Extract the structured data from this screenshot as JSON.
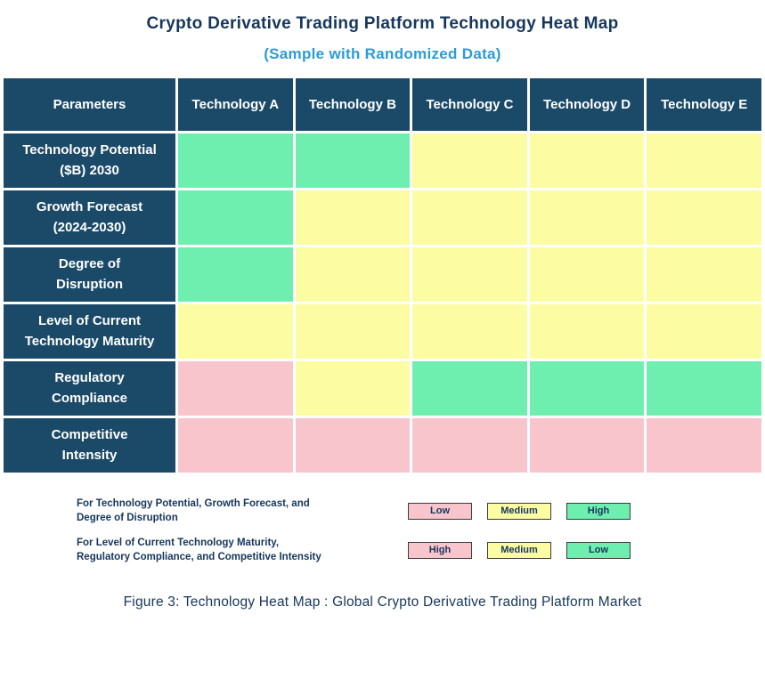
{
  "title": "Crypto Derivative Trading Platform Technology Heat Map",
  "subtitle": "(Sample with Randomized Data)",
  "caption": "Figure 3: Technology Heat Map : Global Crypto Derivative Trading Platform Market",
  "chart_data": {
    "type": "heatmap",
    "columns": [
      "Parameters",
      "Technology A",
      "Technology B",
      "Technology C",
      "Technology D",
      "Technology E"
    ],
    "rows": [
      {
        "label": "Technology Potential\n($B) 2030",
        "colors": [
          "green",
          "green",
          "yellow",
          "yellow",
          "yellow"
        ],
        "values": [
          "High",
          "High",
          "Medium",
          "Medium",
          "Medium"
        ]
      },
      {
        "label": "Growth Forecast\n(2024-2030)",
        "colors": [
          "green",
          "yellow",
          "yellow",
          "yellow",
          "yellow"
        ],
        "values": [
          "High",
          "Medium",
          "Medium",
          "Medium",
          "Medium"
        ]
      },
      {
        "label": "Degree of\nDisruption",
        "colors": [
          "green",
          "yellow",
          "yellow",
          "yellow",
          "yellow"
        ],
        "values": [
          "High",
          "Medium",
          "Medium",
          "Medium",
          "Medium"
        ]
      },
      {
        "label": "Level of Current\nTechnology Maturity",
        "colors": [
          "yellow",
          "yellow",
          "yellow",
          "yellow",
          "yellow"
        ],
        "values": [
          "Medium",
          "Medium",
          "Medium",
          "Medium",
          "Medium"
        ]
      },
      {
        "label": "Regulatory\nCompliance",
        "colors": [
          "pink",
          "yellow",
          "green",
          "green",
          "green"
        ],
        "values": [
          "High",
          "Medium",
          "Low",
          "Low",
          "Low"
        ]
      },
      {
        "label": "Competitive\nIntensity",
        "colors": [
          "pink",
          "pink",
          "pink",
          "pink",
          "pink"
        ],
        "values": [
          "High",
          "High",
          "High",
          "High",
          "High"
        ]
      }
    ],
    "color_scale": {
      "green": "#6FEFAF",
      "yellow": "#FCFCA3",
      "pink": "#F9C5CC"
    }
  },
  "legend": [
    {
      "text": "For Technology Potential, Growth Forecast, and\nDegree of Disruption",
      "items": [
        {
          "label": "Low",
          "color": "pink"
        },
        {
          "label": "Medium",
          "color": "yellow"
        },
        {
          "label": "High",
          "color": "green"
        }
      ]
    },
    {
      "text": "For Level of Current Technology Maturity,\nRegulatory Compliance, and Competitive Intensity",
      "items": [
        {
          "label": "High",
          "color": "pink"
        },
        {
          "label": "Medium",
          "color": "yellow"
        },
        {
          "label": "Low",
          "color": "green"
        }
      ]
    }
  ],
  "colors": {
    "header_bg": "#1B4A68",
    "title_text": "#16365C",
    "subtitle_text": "#2B9CD8"
  }
}
